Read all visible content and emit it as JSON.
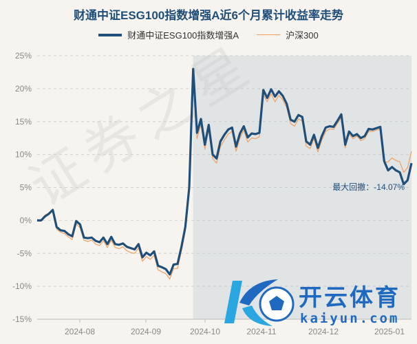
{
  "chart_data": {
    "type": "line",
    "title": "财通中证ESG100指数增强A近6个月累计收益率走势",
    "xlabel": "",
    "ylabel": "",
    "ylim": [
      -15,
      25
    ],
    "yticks": [
      "25%",
      "20%",
      "15%",
      "10%",
      "5%",
      "0%",
      "-5%",
      "-10%",
      "-15%"
    ],
    "xticks": [
      "2024-08",
      "2024-09",
      "2024-10",
      "2024-11",
      "2024-12",
      "2025-01"
    ],
    "grid": true,
    "legend_position": "top",
    "series": [
      {
        "name": "财通中证ESG100指数增强A",
        "color": "#1f4e79",
        "values": [
          0,
          0,
          0.6,
          1.0,
          1.6,
          -1.0,
          -1.5,
          -1.6,
          -2.1,
          -2.4,
          -0.1,
          -0.6,
          -2.6,
          -2.7,
          -2.6,
          -3.1,
          -3.3,
          -2.6,
          -3.6,
          -2.5,
          -3.6,
          -3.7,
          -3.5,
          -4.0,
          -4.2,
          -4.4,
          -3.6,
          -5.6,
          -4.9,
          -5.3,
          -4.7,
          -6.9,
          -7.1,
          -7.4,
          -8.2,
          -6.7,
          -6.6,
          -4.0,
          -1.0,
          5.0,
          23.0,
          13.3,
          15.4,
          11.5,
          14.5,
          10.0,
          9.4,
          12.0,
          13.0,
          13.8,
          14.1,
          11.2,
          13.2,
          14.3,
          12.6,
          13.2,
          13.1,
          13.3,
          19.8,
          18.6,
          19.9,
          18.8,
          19.6,
          18.9,
          17.7,
          15.3,
          15.0,
          16.0,
          15.7,
          12.0,
          11.5,
          13.0,
          11.0,
          12.8,
          14.1,
          14.3,
          14.2,
          15.1,
          16.1,
          11.5,
          13.5,
          12.8,
          13.1,
          12.5,
          12.8,
          13.9,
          13.8,
          14.0,
          14.2,
          9.0,
          7.6,
          8.1,
          7.6,
          7.3,
          5.5,
          6.1,
          8.7
        ]
      },
      {
        "name": "沪深300",
        "color": "#f0a060",
        "values": [
          0,
          0.1,
          0.8,
          1.1,
          1.5,
          -1.3,
          -1.8,
          -2.0,
          -2.5,
          -2.9,
          -0.5,
          -1.1,
          -3.0,
          -3.2,
          -3.0,
          -3.6,
          -3.8,
          -3.1,
          -4.1,
          -3.0,
          -4.1,
          -4.3,
          -4.0,
          -4.6,
          -4.9,
          -5.0,
          -4.2,
          -6.2,
          -5.5,
          -5.9,
          -5.3,
          -7.5,
          -7.8,
          -8.1,
          -8.9,
          -7.3,
          -7.3,
          -4.6,
          -1.6,
          4.5,
          22.0,
          12.4,
          14.6,
          10.8,
          13.9,
          9.4,
          8.7,
          11.2,
          12.2,
          13.1,
          13.5,
          10.5,
          12.5,
          13.7,
          11.9,
          12.5,
          12.4,
          12.7,
          19.1,
          18.0,
          19.2,
          18.0,
          19.0,
          18.3,
          17.1,
          14.7,
          14.3,
          15.4,
          15.1,
          11.3,
          10.9,
          12.4,
          10.4,
          12.2,
          13.5,
          13.9,
          13.8,
          14.7,
          15.6,
          11.0,
          13.1,
          12.4,
          12.8,
          12.1,
          12.4,
          13.5,
          13.5,
          13.7,
          13.9,
          8.8,
          8.9,
          9.5,
          9.1,
          8.9,
          7.3,
          8.0,
          10.5
        ]
      }
    ],
    "annotation": "最大回撤：-14.07%",
    "drawdown_shade": {
      "from_index": 40,
      "to_index": 96
    }
  },
  "watermark": {
    "stamp_text": "证券之星",
    "brand_cn": "开云体育",
    "brand_en": "kaiyun.com"
  }
}
